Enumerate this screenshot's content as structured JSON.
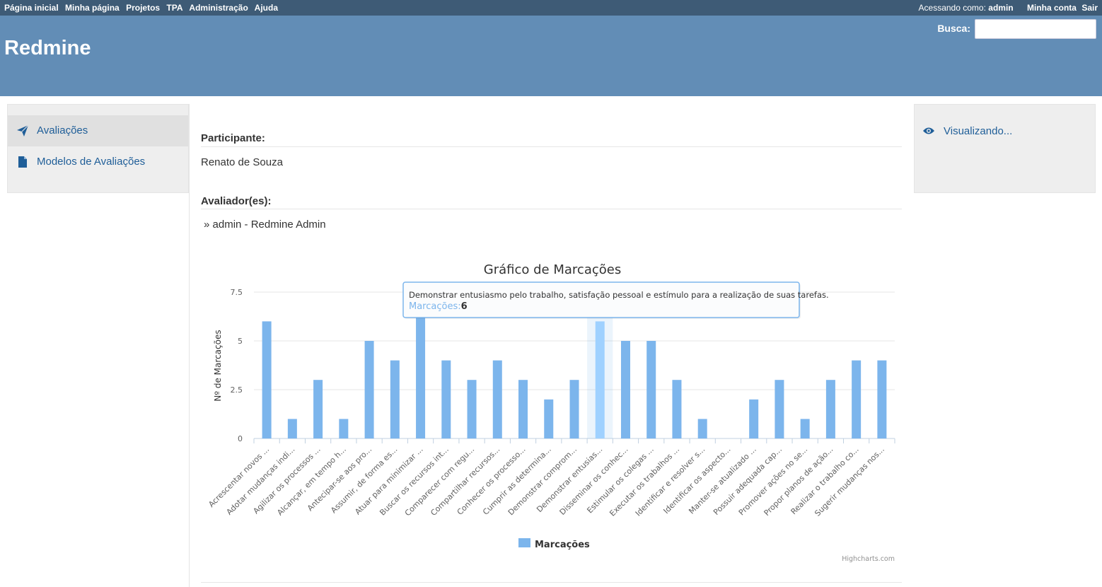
{
  "top_menu": {
    "items": [
      "Página inicial",
      "Minha página",
      "Projetos",
      "TPA",
      "Administração",
      "Ajuda"
    ],
    "logged_as_prefix": "Acessando como:",
    "logged_as_user": "admin",
    "my_account": "Minha conta",
    "logout": "Sair"
  },
  "header": {
    "title": "Redmine",
    "search_label": "Busca:",
    "search_value": ""
  },
  "sidebar_left": {
    "items": [
      {
        "label": "Avaliações",
        "icon": "send-icon"
      },
      {
        "label": "Modelos de Avaliações",
        "icon": "document-icon"
      }
    ]
  },
  "sidebar_right": {
    "label": "Visualizando...",
    "icon": "eye-icon"
  },
  "evaluation": {
    "participant_label": "Participante:",
    "participant_name": "Renato de Souza",
    "evaluators_label": "Avaliador(es):",
    "evaluator_marker": "»",
    "evaluator": "admin - Redmine Admin"
  },
  "chart_data": {
    "type": "bar",
    "title": "Gráfico de Marcações",
    "ylabel": "Nº de Marcações",
    "xlabel": "",
    "ylim": [
      0,
      7.5
    ],
    "yticks": [
      "0",
      "2.5",
      "5",
      "7.5"
    ],
    "categories": [
      "Acrescentar novos ...",
      "Adotar mudanças indi...",
      "Agilizar os processos ...",
      "Alcançar, em tempo h...",
      "Antecipar-se aos pro...",
      "Assumir, de forma es...",
      "Atuar para minimizar ...",
      "Buscar os recursos int...",
      "Comparecer com regu...",
      "Compartilhar recursos...",
      "Conhecer os processo...",
      "Cumprir as determina...",
      "Demonstrar comprom...",
      "Demonstrar entusias...",
      "Disseminar os conhec...",
      "Estimular os colegas ...",
      "Executar os trabalhos ...",
      "Identificar e resolver s...",
      "Identificar os aspecto...",
      "Manter-se atualizado ...",
      "Possuir adequada cap...",
      "Promover ações no se...",
      "Propor planos de ação...",
      "Realizar o trabalho co...",
      "Sugerir mudanças nos..."
    ],
    "series": [
      {
        "name": "Marcações",
        "values": [
          6,
          1,
          3,
          1,
          5,
          4,
          7,
          4,
          3,
          4,
          3,
          2,
          3,
          6,
          5,
          5,
          3,
          1,
          0,
          2,
          3,
          1,
          3,
          4,
          4
        ]
      }
    ],
    "highlight_index": 13,
    "bar_color": "#7cb5ec",
    "highlight_color": "#9fd1ff",
    "legend": "bottom-center",
    "grid": true,
    "credits": "Highcharts.com",
    "tooltip": {
      "text": "Demonstrar entusiasmo pelo trabalho, satisfação pessoal e estímulo para a realização de suas tarefas.",
      "series_label": "Marcações:",
      "value": "6"
    }
  }
}
